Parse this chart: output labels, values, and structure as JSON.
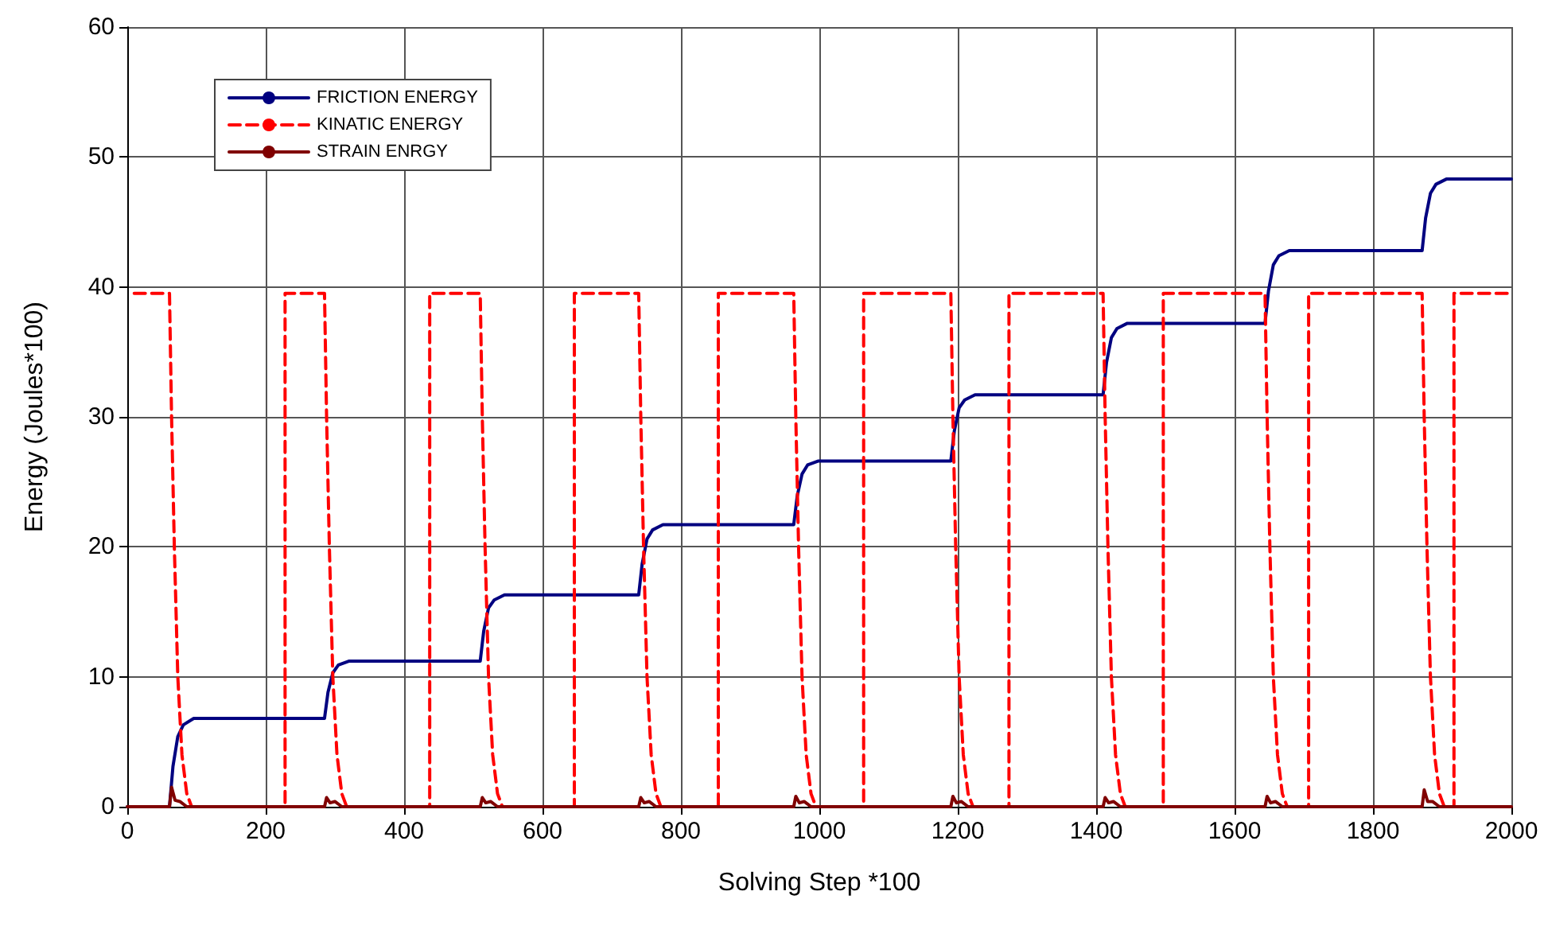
{
  "chart_data": {
    "type": "line",
    "xlabel": "Solving Step *100",
    "ylabel": "Energy (Joules*100)",
    "xlim": [
      0,
      2000
    ],
    "xticks": [
      0,
      200,
      400,
      600,
      800,
      1000,
      1200,
      1400,
      1600,
      1800,
      2000
    ],
    "ylim": [
      0,
      60
    ],
    "yticks": [
      0,
      10,
      20,
      30,
      40,
      50,
      60
    ],
    "grid": true,
    "legend": "top left",
    "marker": "none",
    "series": [
      {
        "name": "FRICTION ENERGY",
        "color": "#000080",
        "line_style": "solid",
        "x": [
          0,
          61,
          66,
          73,
          81,
          96,
          285,
          290,
          297,
          305,
          320,
          510,
          515,
          522,
          530,
          545,
          739,
          744,
          751,
          759,
          774,
          963,
          968,
          975,
          983,
          998,
          1190,
          1195,
          1202,
          1210,
          1225,
          1410,
          1415,
          1422,
          1430,
          1445,
          1644,
          1649,
          1656,
          1664,
          1679,
          1871,
          1876,
          1883,
          1891,
          1906,
          2000
        ],
        "values": [
          0,
          0,
          3.1,
          5.4,
          6.3,
          6.8,
          6.8,
          8.8,
          10.3,
          10.9,
          11.2,
          11.2,
          13.5,
          15.3,
          15.9,
          16.3,
          16.3,
          18.7,
          20.6,
          21.3,
          21.7,
          21.7,
          23.9,
          25.6,
          26.3,
          26.6,
          26.6,
          28.9,
          30.7,
          31.3,
          31.7,
          31.7,
          34.2,
          36.1,
          36.8,
          37.2,
          37.2,
          39.7,
          41.7,
          42.4,
          42.8,
          42.8,
          45.3,
          47.2,
          47.9,
          48.3,
          48.3
        ]
      },
      {
        "name": "KINATIC ENERGY",
        "color": "#ff0000",
        "line_style": "dashed",
        "x": [
          10,
          61,
          64,
          68,
          73,
          79,
          86,
          93,
          228,
          228,
          285,
          288,
          292,
          297,
          303,
          310,
          317,
          437,
          437,
          510,
          513,
          517,
          522,
          528,
          535,
          542,
          646,
          646,
          739,
          742,
          746,
          751,
          757,
          764,
          771,
          854,
          854,
          963,
          966,
          970,
          975,
          981,
          988,
          995,
          1064,
          1064,
          1190,
          1193,
          1197,
          1202,
          1208,
          1215,
          1222,
          1274,
          1274,
          1410,
          1413,
          1417,
          1422,
          1428,
          1435,
          1442,
          1497,
          1497,
          1644,
          1647,
          1651,
          1656,
          1662,
          1669,
          1676,
          1707,
          1707,
          1871,
          1874,
          1878,
          1883,
          1889,
          1896,
          1903,
          1917,
          1917,
          2000
        ],
        "values": [
          39.5,
          39.5,
          30,
          20,
          10,
          4,
          1,
          0,
          0,
          39.5,
          39.5,
          30,
          20,
          10,
          4,
          1,
          0,
          0,
          39.5,
          39.5,
          30,
          20,
          10,
          4,
          1,
          0,
          0,
          39.5,
          39.5,
          30,
          20,
          10,
          4,
          1,
          0,
          0,
          39.5,
          39.5,
          30,
          20,
          10,
          4,
          1,
          0,
          0,
          39.5,
          39.5,
          30,
          20,
          10,
          4,
          1,
          0,
          0,
          39.5,
          39.5,
          30,
          20,
          10,
          4,
          1,
          0,
          0,
          39.5,
          39.5,
          30,
          20,
          10,
          4,
          1,
          0,
          0,
          39.5,
          39.5,
          30,
          20,
          10,
          4,
          1,
          0,
          0,
          39.5,
          39.5
        ]
      },
      {
        "name": "STRAIN ENRGY",
        "color": "#800000",
        "line_style": "solid",
        "x": [
          0,
          61,
          64,
          69,
          76,
          86,
          285,
          288,
          293,
          300,
          310,
          510,
          513,
          518,
          525,
          535,
          739,
          742,
          747,
          754,
          764,
          963,
          966,
          971,
          978,
          988,
          1190,
          1193,
          1198,
          1205,
          1215,
          1410,
          1413,
          1418,
          1425,
          1435,
          1644,
          1647,
          1652,
          1659,
          1669,
          1871,
          1874,
          1879,
          1886,
          1896,
          2000
        ],
        "values": [
          0,
          0,
          1.5,
          0.5,
          0.4,
          0,
          0,
          0.7,
          0.3,
          0.4,
          0,
          0,
          0.7,
          0.3,
          0.4,
          0,
          0,
          0.7,
          0.3,
          0.4,
          0,
          0,
          0.8,
          0.3,
          0.4,
          0,
          0,
          0.8,
          0.3,
          0.4,
          0,
          0,
          0.7,
          0.3,
          0.4,
          0,
          0,
          0.8,
          0.3,
          0.4,
          0,
          0,
          1.3,
          0.4,
          0.4,
          0,
          0
        ]
      }
    ]
  }
}
